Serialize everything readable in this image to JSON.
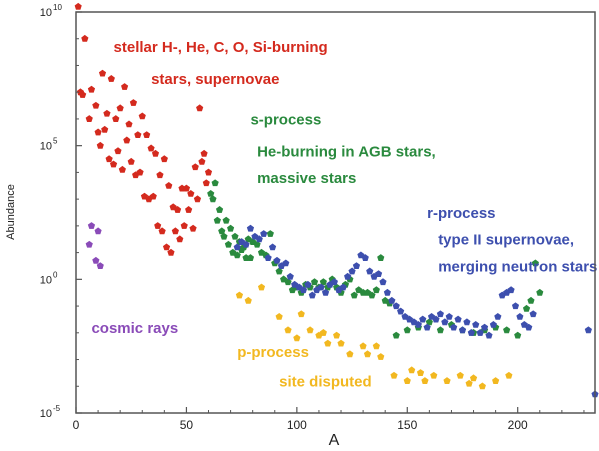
{
  "chart_data": {
    "type": "scatter",
    "xlabel": "A",
    "ylabel": "Abundance",
    "xlim": [
      0,
      235
    ],
    "ylim_log10": [
      -5,
      10
    ],
    "y_scale": "log",
    "grid": false,
    "x_ticks": [
      {
        "value": 0,
        "label": "0"
      },
      {
        "value": 50,
        "label": "50"
      },
      {
        "value": 100,
        "label": "100"
      },
      {
        "value": 150,
        "label": "150"
      },
      {
        "value": 200,
        "label": "200"
      }
    ],
    "y_ticks": [
      {
        "value": 10,
        "base": "10",
        "exp": "10"
      },
      {
        "value": 5,
        "base": "10",
        "exp": "5"
      },
      {
        "value": 0,
        "base": "10",
        "exp": "0"
      },
      {
        "value": -5,
        "base": "10",
        "exp": "-5"
      }
    ],
    "annotations": [
      {
        "id": "stellar-1",
        "text": "stellar H-, He, C, O, Si-burning",
        "color": "#d42a1e",
        "x": 17,
        "y_log10": 8.5
      },
      {
        "id": "stellar-2",
        "text": "stars, supernovae",
        "color": "#d42a1e",
        "x": 34,
        "y_log10": 7.3
      },
      {
        "id": "s-process-1",
        "text": "s-process",
        "color": "#2a8a3e",
        "x": 79,
        "y_log10": 5.8
      },
      {
        "id": "s-process-2",
        "text": "He-burning in AGB stars,",
        "color": "#2a8a3e",
        "x": 82,
        "y_log10": 4.6
      },
      {
        "id": "s-process-3",
        "text": "massive stars",
        "color": "#2a8a3e",
        "x": 82,
        "y_log10": 3.6
      },
      {
        "id": "r-process-1",
        "text": "r-process",
        "color": "#3d4fae",
        "x": 159,
        "y_log10": 2.3
      },
      {
        "id": "r-process-2",
        "text": "type II supernovae,",
        "color": "#3d4fae",
        "x": 164,
        "y_log10": 1.3
      },
      {
        "id": "r-process-3",
        "text": "merging neutron stars",
        "color": "#3d4fae",
        "x": 164,
        "y_log10": 0.3
      },
      {
        "id": "cosmic",
        "text": "cosmic rays",
        "color": "#8a4bb8",
        "x": 7,
        "y_log10": -2.0
      },
      {
        "id": "p-process-1",
        "text": "p-process",
        "color": "#f2b820",
        "x": 73,
        "y_log10": -2.9
      },
      {
        "id": "p-process-2",
        "text": "site disputed",
        "color": "#f2b820",
        "x": 92,
        "y_log10": -4.0
      }
    ],
    "series": [
      {
        "color": "#d42a1e",
        "points": [
          [
            1,
            10.2
          ],
          [
            2,
            7.0
          ],
          [
            3,
            6.9
          ],
          [
            4,
            9.0
          ],
          [
            6,
            6.0
          ],
          [
            7,
            7.1
          ],
          [
            9,
            6.5
          ],
          [
            10,
            5.5
          ],
          [
            11,
            5.0
          ],
          [
            12,
            7.7
          ],
          [
            13,
            5.6
          ],
          [
            14,
            6.2
          ],
          [
            15,
            4.5
          ],
          [
            16,
            7.5
          ],
          [
            17,
            4.3
          ],
          [
            18,
            6.0
          ],
          [
            19,
            4.8
          ],
          [
            20,
            6.4
          ],
          [
            21,
            4.1
          ],
          [
            22,
            7.2
          ],
          [
            23,
            5.2
          ],
          [
            24,
            5.8
          ],
          [
            25,
            4.4
          ],
          [
            26,
            6.6
          ],
          [
            27,
            3.9
          ],
          [
            28,
            5.4
          ],
          [
            29,
            4.0
          ],
          [
            30,
            6.1
          ],
          [
            31,
            3.1
          ],
          [
            32,
            5.4
          ],
          [
            33,
            3.0
          ],
          [
            34,
            4.9
          ],
          [
            35,
            3.1
          ],
          [
            36,
            4.7
          ],
          [
            37,
            2.0
          ],
          [
            38,
            3.9
          ],
          [
            39,
            1.8
          ],
          [
            40,
            4.5
          ],
          [
            41,
            1.2
          ],
          [
            42,
            3.5
          ],
          [
            43,
            1.0
          ],
          [
            44,
            2.7
          ],
          [
            45,
            1.8
          ],
          [
            46,
            2.6
          ],
          [
            47,
            1.5
          ],
          [
            48,
            3.4
          ],
          [
            49,
            2.0
          ],
          [
            50,
            3.4
          ],
          [
            51,
            2.6
          ],
          [
            52,
            3.2
          ],
          [
            53,
            1.9
          ],
          [
            54,
            4.2
          ],
          [
            55,
            3.0
          ],
          [
            56,
            6.4
          ],
          [
            57,
            4.4
          ],
          [
            58,
            4.7
          ],
          [
            59,
            3.6
          ],
          [
            60,
            4.0
          ]
        ]
      },
      {
        "color": "#8a4bb8",
        "points": [
          [
            6,
            1.3
          ],
          [
            7,
            2.0
          ],
          [
            9,
            0.7
          ],
          [
            10,
            1.8
          ],
          [
            11,
            0.5
          ]
        ]
      },
      {
        "color": "#2a8a3e",
        "points": [
          [
            61,
            3.2
          ],
          [
            62,
            3.0
          ],
          [
            63,
            3.6
          ],
          [
            64,
            2.2
          ],
          [
            65,
            2.6
          ],
          [
            66,
            1.8
          ],
          [
            67,
            1.6
          ],
          [
            68,
            2.2
          ],
          [
            69,
            1.3
          ],
          [
            70,
            1.9
          ],
          [
            71,
            1.0
          ],
          [
            72,
            1.6
          ],
          [
            73,
            0.9
          ],
          [
            74,
            1.4
          ],
          [
            75,
            1.1
          ],
          [
            76,
            1.2
          ],
          [
            77,
            0.8
          ],
          [
            78,
            1.5
          ],
          [
            79,
            0.8
          ],
          [
            80,
            1.4
          ],
          [
            82,
            1.3
          ],
          [
            84,
            1.0
          ],
          [
            86,
            0.9
          ],
          [
            88,
            1.7
          ],
          [
            90,
            0.6
          ],
          [
            92,
            0.3
          ],
          [
            94,
            0.0
          ],
          [
            96,
            -0.1
          ],
          [
            98,
            -0.4
          ],
          [
            100,
            -0.3
          ],
          [
            102,
            -0.5
          ],
          [
            104,
            -0.2
          ],
          [
            106,
            -0.3
          ],
          [
            108,
            -0.1
          ],
          [
            110,
            -0.3
          ],
          [
            112,
            -0.1
          ],
          [
            114,
            -0.3
          ],
          [
            116,
            0.0
          ],
          [
            118,
            -0.3
          ],
          [
            120,
            -0.5
          ],
          [
            122,
            -0.2
          ],
          [
            124,
            0.0
          ],
          [
            126,
            -0.6
          ],
          [
            128,
            -0.4
          ],
          [
            130,
            -0.5
          ],
          [
            132,
            -0.5
          ],
          [
            134,
            -0.6
          ],
          [
            136,
            -0.4
          ],
          [
            138,
            0.8
          ],
          [
            140,
            -0.8
          ],
          [
            142,
            -0.9
          ],
          [
            145,
            -2.1
          ],
          [
            150,
            -1.9
          ],
          [
            155,
            -1.8
          ],
          [
            160,
            -1.6
          ],
          [
            165,
            -1.9
          ],
          [
            170,
            -1.7
          ],
          [
            175,
            -1.9
          ],
          [
            180,
            -2.0
          ],
          [
            185,
            -1.9
          ],
          [
            190,
            -1.8
          ],
          [
            195,
            -1.9
          ],
          [
            200,
            -2.1
          ],
          [
            204,
            -1.1
          ],
          [
            206,
            -0.8
          ],
          [
            208,
            0.6
          ],
          [
            210,
            -0.5
          ]
        ]
      },
      {
        "color": "#3d4fae",
        "points": [
          [
            73,
            1.2
          ],
          [
            75,
            1.4
          ],
          [
            77,
            1.3
          ],
          [
            79,
            1.9
          ],
          [
            81,
            1.6
          ],
          [
            83,
            1.5
          ],
          [
            85,
            1.7
          ],
          [
            87,
            0.8
          ],
          [
            89,
            1.2
          ],
          [
            91,
            0.7
          ],
          [
            93,
            0.5
          ],
          [
            95,
            0.6
          ],
          [
            97,
            0.1
          ],
          [
            99,
            -0.2
          ],
          [
            101,
            -0.3
          ],
          [
            103,
            -0.4
          ],
          [
            105,
            -0.2
          ],
          [
            107,
            -0.6
          ],
          [
            109,
            -0.4
          ],
          [
            111,
            -0.3
          ],
          [
            113,
            -0.5
          ],
          [
            115,
            -0.2
          ],
          [
            117,
            -0.1
          ],
          [
            119,
            -0.4
          ],
          [
            121,
            -0.3
          ],
          [
            123,
            0.1
          ],
          [
            125,
            0.3
          ],
          [
            127,
            0.5
          ],
          [
            129,
            0.9
          ],
          [
            131,
            0.8
          ],
          [
            133,
            0.3
          ],
          [
            135,
            0.1
          ],
          [
            137,
            0.2
          ],
          [
            139,
            -0.1
          ],
          [
            141,
            -0.5
          ],
          [
            143,
            -0.8
          ],
          [
            145,
            -1.0
          ],
          [
            147,
            -1.2
          ],
          [
            149,
            -1.4
          ],
          [
            151,
            -1.5
          ],
          [
            153,
            -1.6
          ],
          [
            155,
            -1.7
          ],
          [
            157,
            -1.5
          ],
          [
            159,
            -1.8
          ],
          [
            161,
            -1.4
          ],
          [
            163,
            -1.5
          ],
          [
            165,
            -1.3
          ],
          [
            167,
            -1.6
          ],
          [
            169,
            -1.4
          ],
          [
            171,
            -1.8
          ],
          [
            173,
            -1.5
          ],
          [
            175,
            -1.9
          ],
          [
            177,
            -1.6
          ],
          [
            179,
            -2.0
          ],
          [
            181,
            -1.7
          ],
          [
            183,
            -2.0
          ],
          [
            185,
            -1.8
          ],
          [
            187,
            -2.1
          ],
          [
            189,
            -1.7
          ],
          [
            191,
            -1.4
          ],
          [
            193,
            -0.6
          ],
          [
            195,
            -0.5
          ],
          [
            197,
            -0.4
          ],
          [
            199,
            -1.0
          ],
          [
            201,
            -1.4
          ],
          [
            203,
            -1.7
          ],
          [
            205,
            -1.8
          ],
          [
            207,
            -1.3
          ],
          [
            232,
            -1.9
          ],
          [
            235,
            -4.3
          ]
        ]
      },
      {
        "color": "#f2b820",
        "points": [
          [
            74,
            -0.6
          ],
          [
            78,
            -0.8
          ],
          [
            84,
            -0.3
          ],
          [
            92,
            -1.4
          ],
          [
            96,
            -1.9
          ],
          [
            100,
            -2.2
          ],
          [
            102,
            -1.3
          ],
          [
            106,
            -1.9
          ],
          [
            110,
            -2.1
          ],
          [
            112,
            -2.0
          ],
          [
            114,
            -2.4
          ],
          [
            118,
            -2.1
          ],
          [
            120,
            -2.4
          ],
          [
            124,
            -2.8
          ],
          [
            130,
            -2.5
          ],
          [
            132,
            -2.8
          ],
          [
            136,
            -2.5
          ],
          [
            138,
            -2.9
          ],
          [
            144,
            -3.6
          ],
          [
            150,
            -3.8
          ],
          [
            152,
            -3.4
          ],
          [
            156,
            -3.5
          ],
          [
            158,
            -3.8
          ],
          [
            162,
            -3.6
          ],
          [
            168,
            -3.8
          ],
          [
            174,
            -3.6
          ],
          [
            178,
            -3.9
          ],
          [
            180,
            -3.7
          ],
          [
            184,
            -4.0
          ],
          [
            190,
            -3.8
          ],
          [
            196,
            -3.6
          ]
        ]
      }
    ]
  }
}
